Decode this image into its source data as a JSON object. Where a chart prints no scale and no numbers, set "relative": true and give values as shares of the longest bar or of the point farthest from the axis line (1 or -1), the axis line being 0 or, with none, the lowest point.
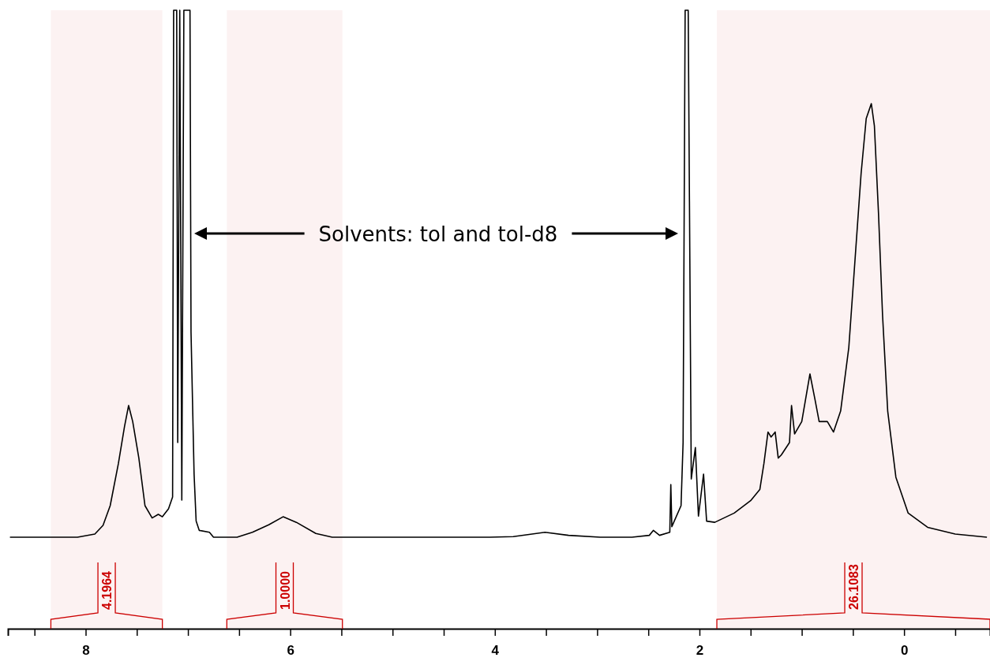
{
  "chart_data": {
    "type": "line",
    "relative": true,
    "xlim": [
      8.76,
      -0.84
    ],
    "xticks": [
      {
        "value": 8.5,
        "label": null
      },
      8,
      {
        "value": 7.5,
        "label": null
      },
      {
        "value": 7,
        "label": null
      },
      {
        "value": 6.5,
        "label": null
      },
      6,
      {
        "value": 5.5,
        "label": null
      },
      {
        "value": 5,
        "label": null
      },
      {
        "value": 4.5,
        "label": null
      },
      4,
      {
        "value": 3.5,
        "label": null
      },
      {
        "value": 3,
        "label": null
      },
      {
        "value": 2.5,
        "label": null
      },
      2,
      {
        "value": 1.5,
        "label": null
      },
      {
        "value": 1,
        "label": null
      },
      {
        "value": 0.5,
        "label": null
      },
      0,
      {
        "value": -0.5,
        "label": null
      }
    ],
    "x": [
      8.74,
      8.08,
      7.91,
      7.83,
      7.76,
      7.68,
      7.62,
      7.58,
      7.54,
      7.48,
      7.42,
      7.35,
      7.29,
      7.25,
      7.19,
      7.15,
      7.14,
      7.11,
      7.1,
      7.08,
      7.06,
      7.04,
      7.01,
      6.98,
      6.97,
      6.94,
      6.92,
      6.89,
      6.79,
      6.75,
      6.52,
      6.37,
      6.21,
      6.07,
      5.94,
      5.75,
      5.59,
      4.21,
      4.05,
      3.82,
      3.51,
      3.28,
      2.97,
      2.66,
      2.49,
      2.45,
      2.39,
      2.29,
      2.28,
      2.27,
      2.18,
      2.16,
      2.14,
      2.11,
      2.08,
      2.04,
      2.01,
      1.96,
      1.93,
      1.85,
      1.66,
      1.5,
      1.41,
      1.37,
      1.33,
      1.3,
      1.26,
      1.23,
      1.2,
      1.12,
      1.1,
      1.07,
      1,
      0.92,
      0.87,
      0.83,
      0.75,
      0.69,
      0.62,
      0.54,
      0.48,
      0.42,
      0.37,
      0.32,
      0.29,
      0.25,
      0.21,
      0.16,
      0.08,
      -0.04,
      -0.23,
      -0.5,
      -0.81
    ],
    "series": [
      {
        "color": "#000000",
        "values": [
          0.148,
          0.148,
          0.153,
          0.167,
          0.199,
          0.267,
          0.327,
          0.361,
          0.335,
          0.276,
          0.199,
          0.179,
          0.185,
          0.181,
          0.194,
          0.213,
          1,
          1,
          0.301,
          1,
          0.208,
          1,
          1,
          1,
          0.48,
          0.25,
          0.174,
          0.159,
          0.156,
          0.148,
          0.148,
          0.156,
          0.168,
          0.181,
          0.172,
          0.154,
          0.148,
          0.148,
          0.148,
          0.149,
          0.156,
          0.151,
          0.148,
          0.148,
          0.151,
          0.159,
          0.151,
          0.156,
          0.233,
          0.165,
          0.199,
          0.301,
          1,
          1,
          0.242,
          0.293,
          0.182,
          0.25,
          0.174,
          0.172,
          0.187,
          0.207,
          0.225,
          0.267,
          0.318,
          0.31,
          0.318,
          0.276,
          0.281,
          0.301,
          0.361,
          0.315,
          0.335,
          0.412,
          0.37,
          0.335,
          0.335,
          0.318,
          0.352,
          0.455,
          0.595,
          0.736,
          0.825,
          0.849,
          0.813,
          0.672,
          0.506,
          0.352,
          0.245,
          0.187,
          0.164,
          0.153,
          0.148
        ]
      }
    ],
    "bands": [
      {
        "axis": "x",
        "from": 8.34,
        "to": 7.25,
        "label": "4.1964",
        "color": "#cc0000"
      },
      {
        "axis": "x",
        "from": 6.62,
        "to": 5.49,
        "label": "1.0000",
        "color": "#cc0000"
      },
      {
        "axis": "x",
        "from": 1.83,
        "to": -0.84,
        "label": "26.1083",
        "color": "#cc0000"
      }
    ],
    "annotations": [
      "Solvents: tol and tol-d8"
    ]
  }
}
